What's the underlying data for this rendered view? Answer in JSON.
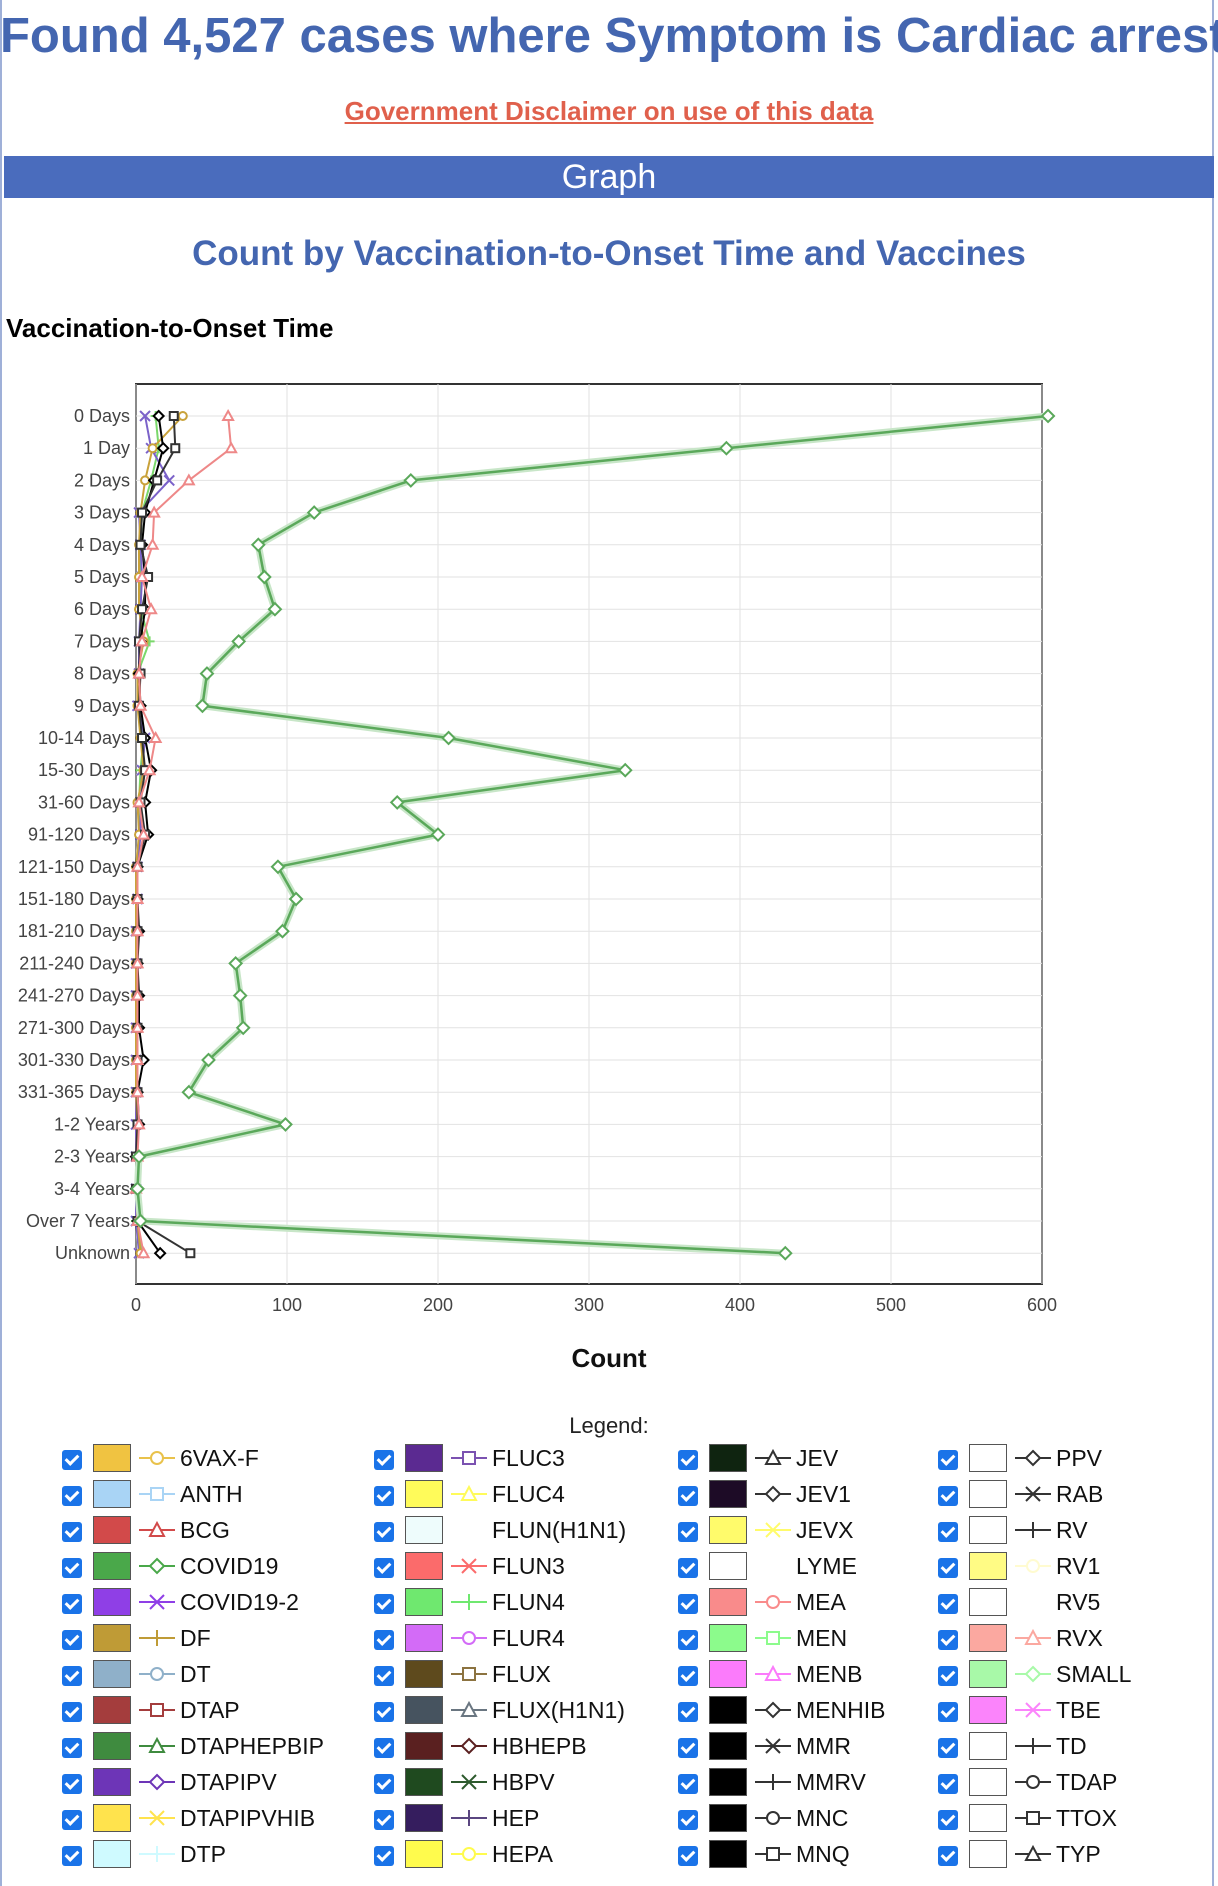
{
  "page": {
    "title": "Found 4,527 cases where Symptom is Cardiac arrest",
    "disclaimer_link": "Government Disclaimer on use of this data",
    "section_header": "Graph"
  },
  "chart_data": {
    "type": "line",
    "orientation": "horizontal",
    "title": "Count by Vaccination-to-Onset Time and Vaccines",
    "ylabel": "Vaccination-to-Onset Time",
    "xlabel": "Count",
    "xlim": [
      0,
      600
    ],
    "xticks": [
      0,
      100,
      200,
      300,
      400,
      500,
      600
    ],
    "grid": true,
    "legend_title": "Legend:",
    "categories": [
      "0 Days",
      "1 Day",
      "2 Days",
      "3 Days",
      "4 Days",
      "5 Days",
      "6 Days",
      "7 Days",
      "8 Days",
      "9 Days",
      "10-14 Days",
      "15-30 Days",
      "31-60 Days",
      "91-120 Days",
      "121-150 Days",
      "151-180 Days",
      "181-210 Days",
      "211-240 Days",
      "241-270 Days",
      "271-300 Days",
      "301-330 Days",
      "331-365 Days",
      "1-2 Years",
      "2-3 Years",
      "3-4 Years",
      "Over 7 Years",
      "Unknown"
    ],
    "series": [
      {
        "name": "COVID19",
        "color": "#5aa85a",
        "marker": "diamond",
        "values": [
          604,
          391,
          182,
          118,
          81,
          85,
          92,
          68,
          47,
          44,
          207,
          324,
          173,
          200,
          94,
          106,
          97,
          66,
          69,
          71,
          48,
          35,
          99,
          2,
          1,
          3,
          430
        ]
      },
      {
        "name": "BCG",
        "color": "#ee8888",
        "marker": "triangle",
        "values": [
          61,
          63,
          35,
          12,
          11,
          4,
          10,
          4,
          2,
          3,
          13,
          9,
          2,
          5,
          1,
          1,
          1,
          1,
          1,
          1,
          1,
          1,
          2,
          1,
          0,
          1,
          5
        ]
      },
      {
        "name": "DTAP",
        "color": "#333333",
        "marker": "square",
        "values": [
          25,
          26,
          14,
          4,
          3,
          8,
          4,
          2,
          3,
          2,
          4,
          6,
          3,
          6,
          1,
          1,
          1,
          1,
          1,
          1,
          1,
          1,
          1,
          0,
          0,
          1,
          36
        ]
      },
      {
        "name": "MENHIB",
        "color": "#000000",
        "marker": "diamond",
        "values": [
          15,
          18,
          12,
          6,
          4,
          6,
          6,
          3,
          2,
          3,
          6,
          10,
          6,
          8,
          1,
          1,
          2,
          1,
          2,
          2,
          5,
          1,
          2,
          0,
          0,
          1,
          16
        ]
      },
      {
        "name": "6VAX-F",
        "color": "#c9a23a",
        "marker": "circle",
        "values": [
          31,
          11,
          6,
          3,
          2,
          2,
          2,
          5,
          1,
          1,
          3,
          5,
          1,
          2,
          0,
          0,
          0,
          0,
          0,
          0,
          0,
          0,
          1,
          0,
          0,
          1,
          3
        ]
      },
      {
        "name": "COVID19-2",
        "color": "#7b62c9",
        "marker": "x",
        "values": [
          6,
          10,
          22,
          2,
          3,
          4,
          3,
          2,
          2,
          1,
          6,
          4,
          3,
          3,
          1,
          1,
          0,
          0,
          0,
          0,
          0,
          0,
          0,
          0,
          0,
          0,
          2
        ]
      },
      {
        "name": "FLUN4",
        "color": "#7ad86b",
        "marker": "cross",
        "values": [
          13,
          15,
          10,
          4,
          3,
          3,
          3,
          9,
          1,
          2,
          5,
          3,
          2,
          3,
          0,
          0,
          0,
          0,
          0,
          0,
          0,
          0,
          1,
          0,
          0,
          0,
          4
        ]
      }
    ]
  },
  "legend": {
    "columns": [
      [
        {
          "label": "6VAX-F",
          "swatch": "#f0c341",
          "marker": "circle",
          "marker_color": "#e9c24b"
        },
        {
          "label": "ANTH",
          "swatch": "#a9d4f5",
          "marker": "square",
          "marker_color": "#a9d4f5"
        },
        {
          "label": "BCG",
          "swatch": "#d24a4a",
          "marker": "triangle",
          "marker_color": "#d24a4a"
        },
        {
          "label": "COVID19",
          "swatch": "#4aa84a",
          "marker": "diamond",
          "marker_color": "#4aa84a"
        },
        {
          "label": "COVID19-2",
          "swatch": "#8f3fe6",
          "marker": "x",
          "marker_color": "#8f3fe6"
        },
        {
          "label": "DF",
          "swatch": "#bf9b36",
          "marker": "cross",
          "marker_color": "#bf9b36"
        },
        {
          "label": "DT",
          "swatch": "#8fb0c9",
          "marker": "circle",
          "marker_color": "#8fb0c9"
        },
        {
          "label": "DTAP",
          "swatch": "#a43d3d",
          "marker": "square",
          "marker_color": "#a43d3d"
        },
        {
          "label": "DTAPHEPBIP",
          "swatch": "#3f8b3f",
          "marker": "triangle",
          "marker_color": "#3f8b3f"
        },
        {
          "label": "DTAPIPV",
          "swatch": "#6d35b7",
          "marker": "diamond",
          "marker_color": "#6d35b7"
        },
        {
          "label": "DTAPIPVHIB",
          "swatch": "#ffe34d",
          "marker": "x",
          "marker_color": "#ffe34d"
        },
        {
          "label": "DTP",
          "swatch": "#cffaff",
          "marker": "cross",
          "marker_color": "#cffaff"
        }
      ],
      [
        {
          "label": "FLUC3",
          "swatch": "#5b2a91",
          "marker": "square",
          "marker_color": "#7b52b1"
        },
        {
          "label": "FLUC4",
          "swatch": "#fffb5a",
          "marker": "triangle",
          "marker_color": "#fffb5a"
        },
        {
          "label": "FLUN(H1N1)",
          "swatch": "#eefcfc",
          "marker": "none",
          "marker_color": "#eefcfc"
        },
        {
          "label": "FLUN3",
          "swatch": "#fb6b6b",
          "marker": "x",
          "marker_color": "#fb6b6b"
        },
        {
          "label": "FLUN4",
          "swatch": "#6fe86f",
          "marker": "cross",
          "marker_color": "#6fe86f"
        },
        {
          "label": "FLUR4",
          "swatch": "#d36bf7",
          "marker": "circle",
          "marker_color": "#d36bf7"
        },
        {
          "label": "FLUX",
          "swatch": "#5e4a1d",
          "marker": "square",
          "marker_color": "#8c7340"
        },
        {
          "label": "FLUX(H1N1)",
          "swatch": "#46535f",
          "marker": "triangle",
          "marker_color": "#6a7681"
        },
        {
          "label": "HBHEPB",
          "swatch": "#5a2020",
          "marker": "diamond",
          "marker_color": "#5a2020"
        },
        {
          "label": "HBPV",
          "swatch": "#1f4a1f",
          "marker": "x",
          "marker_color": "#2d5a2d"
        },
        {
          "label": "HEP",
          "swatch": "#351d5e",
          "marker": "cross",
          "marker_color": "#5a4680"
        },
        {
          "label": "HEPA",
          "swatch": "#fffb4d",
          "marker": "circle",
          "marker_color": "#fffb4d"
        }
      ],
      [
        {
          "label": "JEV",
          "swatch": "#0f2410",
          "marker": "triangle",
          "marker_color": "#333333"
        },
        {
          "label": "JEV1",
          "swatch": "#1d0b26",
          "marker": "diamond",
          "marker_color": "#333333"
        },
        {
          "label": "JEVX",
          "swatch": "#fffb6b",
          "marker": "x",
          "marker_color": "#fffb6b"
        },
        {
          "label": "LYME",
          "swatch": "#ffffff",
          "marker": "none",
          "marker_color": "#ffffff"
        },
        {
          "label": "MEA",
          "swatch": "#f98b8b",
          "marker": "circle",
          "marker_color": "#f98b8b"
        },
        {
          "label": "MEN",
          "swatch": "#8cfb8c",
          "marker": "square",
          "marker_color": "#8cfb8c"
        },
        {
          "label": "MENB",
          "swatch": "#fb7bfb",
          "marker": "triangle",
          "marker_color": "#fb7bfb"
        },
        {
          "label": "MENHIB",
          "swatch": "#000000",
          "marker": "diamond",
          "marker_color": "#333333"
        },
        {
          "label": "MMR",
          "swatch": "#000000",
          "marker": "x",
          "marker_color": "#333333"
        },
        {
          "label": "MMRV",
          "swatch": "#000000",
          "marker": "cross",
          "marker_color": "#333333"
        },
        {
          "label": "MNC",
          "swatch": "#000000",
          "marker": "circle",
          "marker_color": "#333333"
        },
        {
          "label": "MNQ",
          "swatch": "#000000",
          "marker": "square",
          "marker_color": "#333333"
        }
      ],
      [
        {
          "label": "PPV",
          "swatch": "#ffffff",
          "marker": "diamond",
          "marker_color": "#333333"
        },
        {
          "label": "RAB",
          "swatch": "#ffffff",
          "marker": "x",
          "marker_color": "#333333"
        },
        {
          "label": "RV",
          "swatch": "#ffffff",
          "marker": "cross",
          "marker_color": "#333333"
        },
        {
          "label": "RV1",
          "swatch": "#fffb84",
          "marker": "circle",
          "marker_color": "#fffbd0"
        },
        {
          "label": "RV5",
          "swatch": "#ffffff",
          "marker": "none",
          "marker_color": "#ffffff"
        },
        {
          "label": "RVX",
          "swatch": "#fba8a0",
          "marker": "triangle",
          "marker_color": "#fba8a0"
        },
        {
          "label": "SMALL",
          "swatch": "#a8f9a8",
          "marker": "diamond",
          "marker_color": "#a8f9a8"
        },
        {
          "label": "TBE",
          "swatch": "#fb84fb",
          "marker": "x",
          "marker_color": "#fb84fb"
        },
        {
          "label": "TD",
          "swatch": "#ffffff",
          "marker": "cross",
          "marker_color": "#333333"
        },
        {
          "label": "TDAP",
          "swatch": "#ffffff",
          "marker": "circle",
          "marker_color": "#333333"
        },
        {
          "label": "TTOX",
          "swatch": "#ffffff",
          "marker": "square",
          "marker_color": "#333333"
        },
        {
          "label": "TYP",
          "swatch": "#ffffff",
          "marker": "triangle",
          "marker_color": "#333333"
        }
      ]
    ]
  }
}
